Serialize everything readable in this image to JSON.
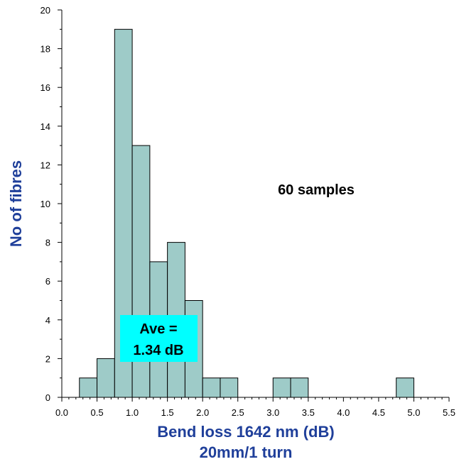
{
  "chart_data": {
    "type": "bar",
    "subtype": "histogram",
    "bin_width": 0.25,
    "bins": [
      {
        "start": 0.25,
        "end": 0.5,
        "count": 1
      },
      {
        "start": 0.5,
        "end": 0.75,
        "count": 2
      },
      {
        "start": 0.75,
        "end": 1.0,
        "count": 19
      },
      {
        "start": 1.0,
        "end": 1.25,
        "count": 13
      },
      {
        "start": 1.25,
        "end": 1.5,
        "count": 7
      },
      {
        "start": 1.5,
        "end": 1.75,
        "count": 8
      },
      {
        "start": 1.75,
        "end": 2.0,
        "count": 5
      },
      {
        "start": 2.0,
        "end": 2.25,
        "count": 1
      },
      {
        "start": 2.25,
        "end": 2.5,
        "count": 1
      },
      {
        "start": 3.0,
        "end": 3.25,
        "count": 1
      },
      {
        "start": 3.25,
        "end": 3.5,
        "count": 1
      },
      {
        "start": 4.75,
        "end": 5.0,
        "count": 1
      }
    ],
    "xlabel": "Bend loss 1642 nm (dB)",
    "xlabel_line2": "20mm/1 turn",
    "ylabel": "No of fibres",
    "xlim": [
      0,
      5.5
    ],
    "ylim": [
      0,
      20
    ],
    "x_ticks": [
      "0.0",
      "0.5",
      "1.0",
      "1.5",
      "2.0",
      "2.5",
      "3.0",
      "3.5",
      "4.0",
      "4.5",
      "5.0",
      "5.5"
    ],
    "y_ticks": [
      "0",
      "2",
      "4",
      "6",
      "8",
      "10",
      "12",
      "14",
      "16",
      "18",
      "20"
    ],
    "annotations": {
      "samples": "60 samples",
      "average_line1": "Ave =",
      "average_line2": "1.34 dB"
    },
    "colors": {
      "bar_fill": "#9ecbc8",
      "bar_stroke": "#000000",
      "axis_title": "#1f3f9a",
      "average_box": "#00ffff"
    },
    "grid": false
  }
}
